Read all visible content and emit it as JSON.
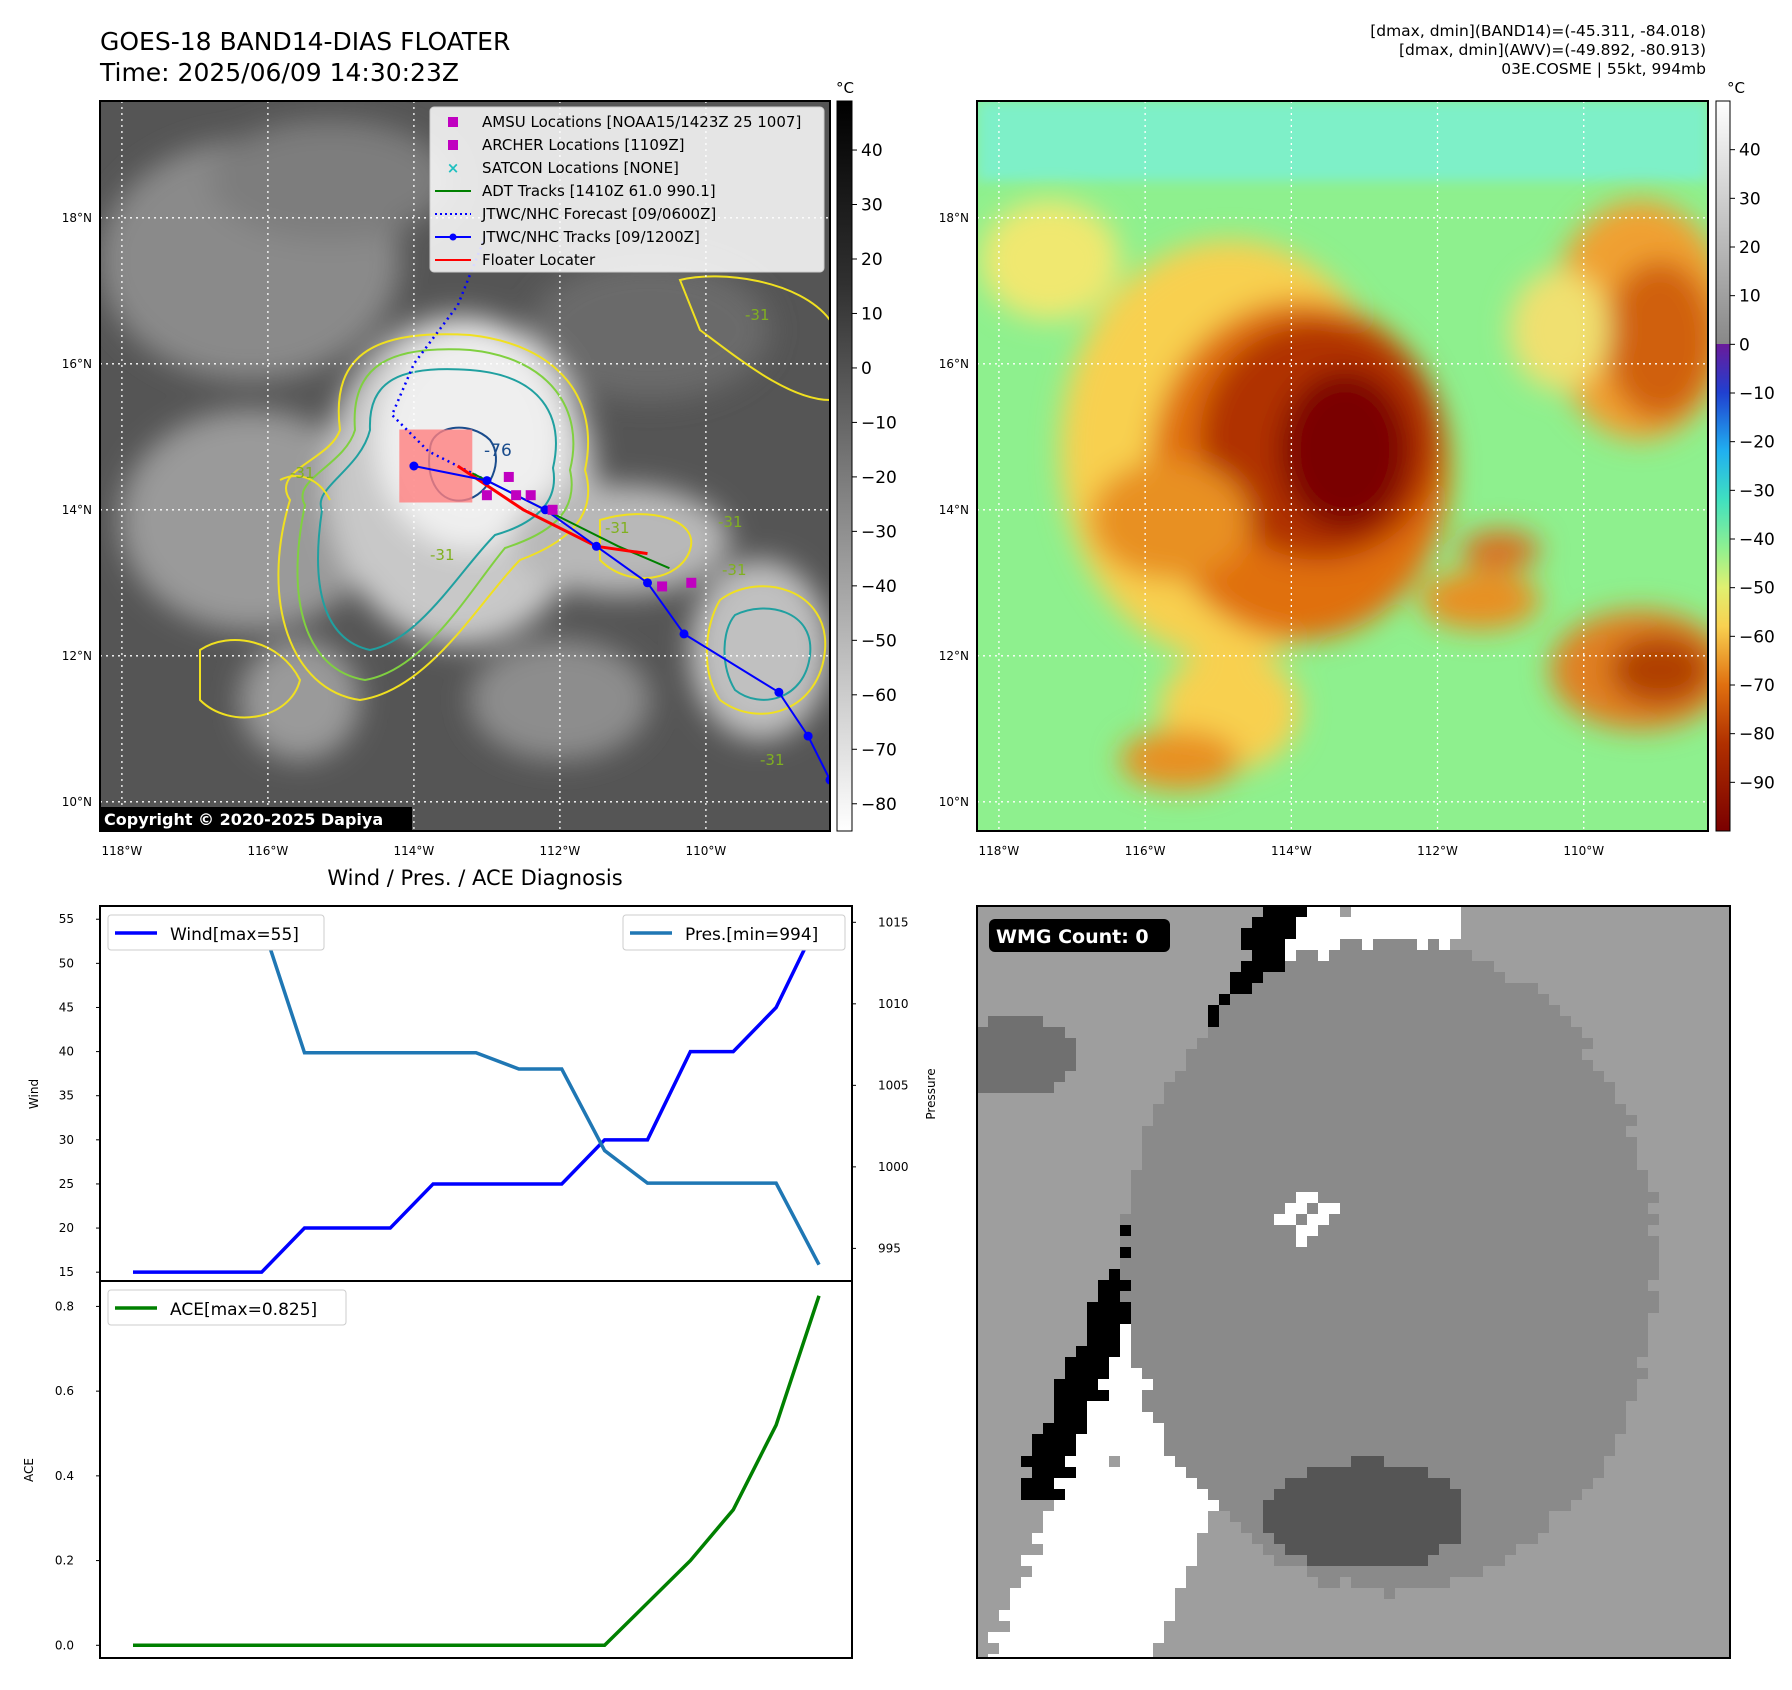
{
  "header": {
    "title_line1": "GOES-18 BAND14-DIAS FLOATER",
    "title_line2": "Time: 2025/06/09 14:30:23Z",
    "info_line1": "[dmax, dmin](BAND14)=(-45.311, -84.018)",
    "info_line2": "[dmax, dmin](AWV)=(-49.892, -80.913)",
    "info_line3": "03E.COSME | 55kt, 994mb"
  },
  "map": {
    "lat_labels": [
      "18°N",
      "16°N",
      "14°N",
      "12°N",
      "10°N"
    ],
    "lat_values": [
      18,
      16,
      14,
      12,
      10
    ],
    "lon_labels": [
      "118°W",
      "116°W",
      "114°W",
      "112°W",
      "110°W"
    ],
    "lon_values": [
      -118,
      -116,
      -114,
      -112,
      -110
    ],
    "extent": {
      "lon_min": -118.3,
      "lon_max": -108.3,
      "lat_min": 9.6,
      "lat_max": 19.6
    },
    "copyright": "Copyright © 2020-2025 Dapiya",
    "contour_labels": [
      "-76",
      "-31",
      "-31",
      "-31",
      "-31",
      "-31",
      "-31",
      "-31"
    ]
  },
  "colorbars": {
    "unit": "°C",
    "left_ticks": [
      40,
      30,
      20,
      10,
      0,
      -10,
      -20,
      -30,
      -40,
      -50,
      -60,
      -70,
      -80
    ],
    "left_range": [
      -85,
      49
    ],
    "right_ticks": [
      40,
      30,
      20,
      10,
      0,
      -10,
      -20,
      -30,
      -40,
      -50,
      -60,
      -70,
      -80,
      -90
    ],
    "right_range": [
      -100,
      50
    ]
  },
  "legend": {
    "items": [
      {
        "label": "AMSU Locations [NOAA15/1423Z 25 1007]",
        "color": "#c000c0",
        "marker": "square"
      },
      {
        "label": "ARCHER Locations [1109Z]",
        "color": "#c000c0",
        "marker": "square"
      },
      {
        "label": "SATCON Locations [NONE]",
        "color": "#20c0c0",
        "marker": "x"
      },
      {
        "label": "ADT Tracks [1410Z 61.0 990.1]",
        "color": "#008000",
        "marker": "line"
      },
      {
        "label": "JTWC/NHC Forecast [09/0600Z]",
        "color": "#0000ff",
        "marker": "dotted"
      },
      {
        "label": "JTWC/NHC Tracks [09/1200Z]",
        "color": "#0000ff",
        "marker": "line-dot"
      },
      {
        "label": "Floater Locater",
        "color": "#ff0000",
        "marker": "line"
      }
    ]
  },
  "tracks": {
    "jtwc_track": [
      [
        -108.3,
        10.3
      ],
      [
        -108.6,
        10.9
      ],
      [
        -109.0,
        11.5
      ],
      [
        -110.3,
        12.3
      ],
      [
        -110.8,
        13.0
      ],
      [
        -111.5,
        13.5
      ],
      [
        -112.2,
        14.0
      ],
      [
        -113.0,
        14.4
      ],
      [
        -114.0,
        14.6
      ]
    ],
    "jtwc_forecast": [
      [
        -113.0,
        14.4
      ],
      [
        -113.8,
        14.8
      ],
      [
        -114.3,
        15.3
      ],
      [
        -114.0,
        16.0
      ],
      [
        -113.4,
        16.8
      ],
      [
        -113.0,
        17.8
      ]
    ],
    "adt": [
      [
        -110.5,
        13.2
      ],
      [
        -111.2,
        13.5
      ],
      [
        -112.0,
        13.9
      ],
      [
        -113.2,
        14.5
      ]
    ],
    "floater": [
      [
        -110.8,
        13.4
      ],
      [
        -111.5,
        13.5
      ],
      [
        -112.5,
        14.0
      ],
      [
        -113.4,
        14.6
      ]
    ],
    "amsu": [
      [
        -112.6,
        14.2
      ],
      [
        -110.6,
        12.95
      ],
      [
        -110.2,
        13.0
      ],
      [
        -113.0,
        14.2
      ]
    ],
    "archer": [
      [
        -112.7,
        14.45
      ],
      [
        -112.4,
        14.2
      ],
      [
        -112.1,
        14.0
      ]
    ],
    "floater_box": {
      "lon": [
        -114.2,
        -113.2
      ],
      "lat": [
        14.1,
        15.1
      ]
    }
  },
  "chart_data": [
    {
      "type": "line",
      "title": "Wind / Pres. / ACE Diagnosis",
      "x": [
        0,
        1,
        2,
        3,
        4,
        5,
        6,
        7,
        8,
        9,
        10,
        11,
        12,
        13,
        14,
        15,
        16
      ],
      "ylabel": "Wind",
      "ylim": [
        14,
        56.5
      ],
      "yticks": [
        15,
        20,
        25,
        30,
        35,
        40,
        45,
        50,
        55
      ],
      "y2label": "Pressure",
      "y2lim": [
        993,
        1016
      ],
      "y2ticks": [
        995,
        1000,
        1005,
        1010,
        1015
      ],
      "series": [
        {
          "name": "Wind[max=55]",
          "axis": "left",
          "color": "#0000ff",
          "values": [
            15,
            15,
            15,
            15,
            20,
            20,
            20,
            25,
            25,
            25,
            25,
            30,
            30,
            40,
            40,
            45,
            55
          ]
        },
        {
          "name": "Pres.[min=994]",
          "axis": "right",
          "color": "#1f77b4",
          "values": [
            1015,
            1015,
            1015,
            1015,
            1007,
            1007,
            1007,
            1007,
            1007,
            1006,
            1006,
            1001,
            999,
            999,
            999,
            999,
            994
          ]
        }
      ]
    },
    {
      "type": "line",
      "x": [
        0,
        1,
        2,
        3,
        4,
        5,
        6,
        7,
        8,
        9,
        10,
        11,
        12,
        13,
        14,
        15,
        16
      ],
      "ylabel": "ACE",
      "ylim": [
        -0.03,
        0.86
      ],
      "yticks": [
        0.0,
        0.2,
        0.4,
        0.6,
        0.8
      ],
      "ytick_labels": [
        "0.0",
        "0.2",
        "0.4",
        "0.6",
        "0.8"
      ],
      "series": [
        {
          "name": "ACE[max=0.825]",
          "color": "#008000",
          "values": [
            0,
            0,
            0,
            0,
            0,
            0,
            0,
            0,
            0,
            0,
            0,
            0,
            0.1,
            0.2,
            0.32,
            0.52,
            0.825
          ]
        }
      ]
    }
  ],
  "wmg": {
    "label": "WMG Count: 0"
  }
}
